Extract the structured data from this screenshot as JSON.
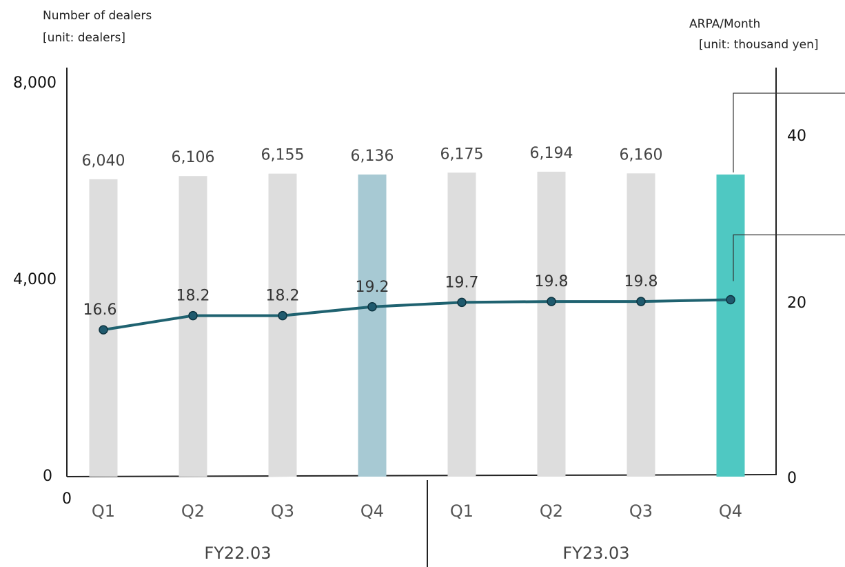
{
  "chart_data": {
    "type": "bar",
    "left_axis_title_line1": "Number of dealers",
    "left_axis_title_line2": "[unit: dealers]",
    "right_axis_title_line1": "ARPA/Month",
    "right_axis_title_line2": "[unit: thousand yen]",
    "left_ticks": [
      "0",
      "4,000",
      "8,000"
    ],
    "right_ticks": [
      "0",
      "20",
      "40"
    ],
    "origin_label": "0",
    "ylim_left": [
      0,
      8000
    ],
    "ylim_right": [
      0,
      40
    ],
    "categories": [
      "Q1",
      "Q2",
      "Q3",
      "Q4",
      "Q1",
      "Q2",
      "Q3",
      "Q4"
    ],
    "groups": [
      {
        "label": "FY22.03",
        "start": 0,
        "end": 3
      },
      {
        "label": "FY23.03",
        "start": 4,
        "end": 7
      }
    ],
    "series": [
      {
        "kind": "bar",
        "values": [
          6040,
          6106,
          6155,
          6136,
          6175,
          6194,
          6160,
          6136
        ],
        "value_labels": [
          "6,040",
          "6,106",
          "6,155",
          "6,136",
          "6,175",
          "6,194",
          "6,160",
          ""
        ],
        "colors": [
          "#dddddd",
          "#dddddd",
          "#dddddd",
          "#a7c9d3",
          "#dddddd",
          "#dddddd",
          "#dddddd",
          "#4fc8c2"
        ]
      },
      {
        "kind": "line",
        "axis": "right",
        "values": [
          16.6,
          18.2,
          18.2,
          19.2,
          19.7,
          19.8,
          19.8,
          20.0
        ],
        "value_labels": [
          "16.6",
          "18.2",
          "18.2",
          "19.2",
          "19.7",
          "19.8",
          "19.8",
          ""
        ],
        "color": "#1f6270",
        "marker_color": "#1f5a6e"
      }
    ]
  }
}
